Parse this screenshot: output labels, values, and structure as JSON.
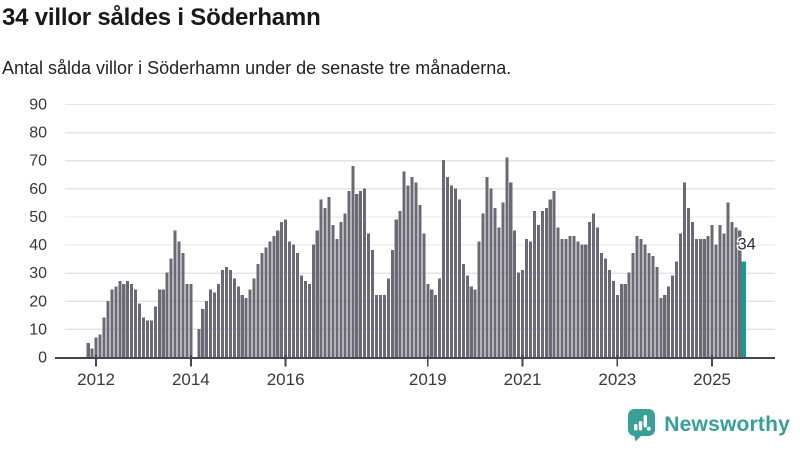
{
  "header": {
    "title": "34 villor såldes i Söderhamn",
    "subtitle": "Antal sålda villor i Söderhamn under de senaste tre månaderna."
  },
  "chart_data": {
    "type": "bar",
    "title": "34 villor såldes i Söderhamn",
    "subtitle": "Antal sålda villor i Söderhamn under de senaste tre månaderna.",
    "x": {
      "start": "2011-11",
      "end": "2025-09",
      "freq": "monthly"
    },
    "values": [
      5,
      3,
      7,
      8,
      14,
      20,
      24,
      25,
      27,
      26,
      27,
      26,
      24,
      19,
      14,
      13,
      13,
      18,
      24,
      24,
      30,
      35,
      45,
      41,
      37,
      26,
      26,
      0,
      10,
      17,
      20,
      24,
      23,
      26,
      31,
      32,
      31,
      28,
      25,
      22,
      21,
      24,
      28,
      33,
      37,
      39,
      41,
      43,
      45,
      48,
      49,
      41,
      40,
      37,
      29,
      27,
      26,
      40,
      45,
      56,
      53,
      57,
      47,
      42,
      48,
      51,
      59,
      68,
      58,
      59,
      60,
      44,
      38,
      22,
      22,
      22,
      28,
      38,
      49,
      52,
      66,
      61,
      64,
      62,
      54,
      44,
      26,
      24,
      22,
      28,
      70,
      64,
      61,
      60,
      56,
      33,
      29,
      25,
      24,
      41,
      51,
      64,
      60,
      53,
      46,
      55,
      71,
      62,
      45,
      30,
      31,
      42,
      41,
      52,
      47,
      52,
      53,
      56,
      59,
      46,
      42,
      42,
      43,
      43,
      41,
      40,
      40,
      48,
      51,
      46,
      37,
      35,
      31,
      27,
      22,
      26,
      26,
      30,
      37,
      43,
      42,
      40,
      37,
      36,
      32,
      21,
      22,
      25,
      29,
      34,
      44,
      62,
      53,
      48,
      42,
      42,
      42,
      43,
      47,
      40,
      47,
      44,
      55,
      48,
      46,
      45,
      34
    ],
    "highlight": {
      "index": 166,
      "value": 34,
      "label": "34"
    },
    "ylim": [
      0,
      90
    ],
    "y_ticks": [
      0,
      10,
      20,
      30,
      40,
      50,
      60,
      70,
      80,
      90
    ],
    "x_ticks": [
      {
        "label": "2012",
        "month_index": 2
      },
      {
        "label": "2014",
        "month_index": 26
      },
      {
        "label": "2016",
        "month_index": 50
      },
      {
        "label": "2019",
        "month_index": 86
      },
      {
        "label": "2021",
        "month_index": 110
      },
      {
        "label": "2023",
        "month_index": 134
      },
      {
        "label": "2025",
        "month_index": 158
      }
    ],
    "grid": "horizontal",
    "legend": "none",
    "colors": {
      "bar": "#6b6973",
      "highlight": "#17999c",
      "grid": "#e4e4e8",
      "axis": "#47454c",
      "tick_label": "#39393d",
      "annotation": "#2f2f34"
    }
  },
  "footer": {
    "brand": "Newsworthy",
    "brand_color": "#38a099"
  }
}
